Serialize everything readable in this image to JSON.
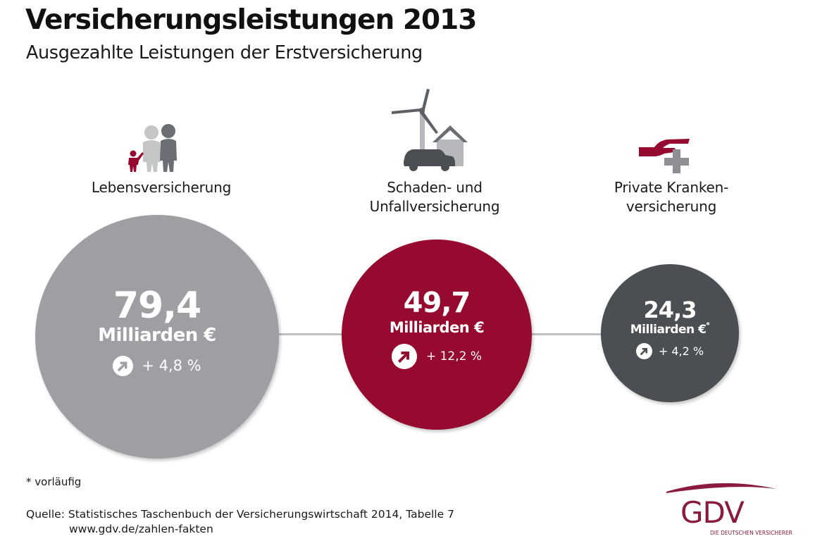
{
  "header": {
    "title": "Versicherungsleistungen 2013",
    "subtitle": "Ausgezahlte Leistungen der Erstversicherung"
  },
  "chart_data": {
    "type": "bubble",
    "title": "Versicherungsleistungen 2013",
    "subtitle": "Ausgezahlte Leistungen der Erstversicherung",
    "unit": "Milliarden €",
    "categories": [
      "Lebensversicherung",
      "Schaden- und Unfallversicherung",
      "Private Krankenversicherung"
    ],
    "items": [
      {
        "label_lines": [
          "Lebensversicherung"
        ],
        "icon": "family-icon",
        "value": 79.4,
        "value_text": "79,4",
        "unit_text": "Milliarden €",
        "unit_mark": "",
        "change": 4.8,
        "change_text": "+ 4,8 %",
        "change_icon": "arrow-up-right-icon",
        "color": "#9d9fa3"
      },
      {
        "label_lines": [
          "Schaden- und",
          "Unfallversicherung"
        ],
        "icon": "windmill-house-car-icon",
        "value": 49.7,
        "value_text": "49,7",
        "unit_text": "Milliarden €",
        "unit_mark": "",
        "change": 12.2,
        "change_text": "+ 12,2 %",
        "change_icon": "arrow-up-right-icon",
        "color": "#960a2f"
      },
      {
        "label_lines": [
          "Private Kranken-",
          "versicherung"
        ],
        "icon": "hand-cross-icon",
        "value": 24.3,
        "value_text": "24,3",
        "unit_text": "Milliarden €",
        "unit_mark": "*",
        "change": 4.2,
        "change_text": "+ 4,2 %",
        "change_icon": "arrow-up-right-icon",
        "color": "#4b4f54"
      }
    ]
  },
  "footer": {
    "footnote": "* vorläufig",
    "source_line": "Quelle: Statistisches Taschenbuch der Versicherungswirtschaft 2014, Tabelle 7",
    "source_url": "www.gdv.de/zahlen-fakten"
  },
  "logo": {
    "name": "GDV",
    "tagline": "DIE DEUTSCHEN VERSICHERER",
    "color": "#8a1b3f"
  }
}
